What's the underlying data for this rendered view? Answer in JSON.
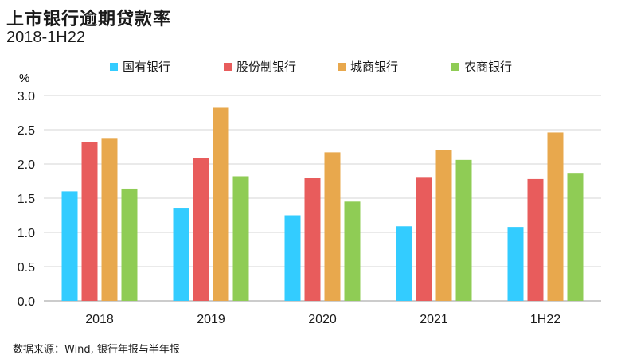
{
  "title": "上市银行逾期贷款率",
  "subtitle": "2018-1H22",
  "source": "数据来源：Wind, 银行年报与半年报",
  "colors": {
    "state_owned": "#33ccff",
    "joint_stock": "#e85c5c",
    "city_commercial": "#e8a84d",
    "rural_commercial": "#8fcc55"
  },
  "chart_data": {
    "type": "bar",
    "title": "上市银行逾期贷款率",
    "subtitle": "2018-1H22",
    "ylabel": "%",
    "xlabel": "",
    "ylim": [
      0,
      3.0
    ],
    "yticks": [
      "0.0",
      "0.5",
      "1.0",
      "1.5",
      "2.0",
      "2.5",
      "3.0"
    ],
    "grid": true,
    "legend_position": "top",
    "categories": [
      "2018",
      "2019",
      "2020",
      "2021",
      "1H22"
    ],
    "series": [
      {
        "name": "国有银行",
        "color": "#33ccff",
        "values": [
          1.6,
          1.36,
          1.25,
          1.09,
          1.08
        ]
      },
      {
        "name": "股份制银行",
        "color": "#e85c5c",
        "values": [
          2.32,
          2.09,
          1.8,
          1.81,
          1.78
        ]
      },
      {
        "name": "城商银行",
        "color": "#e8a84d",
        "values": [
          2.38,
          2.82,
          2.17,
          2.2,
          2.46
        ]
      },
      {
        "name": "农商银行",
        "color": "#8fcc55",
        "values": [
          1.64,
          1.82,
          1.45,
          2.06,
          1.87
        ]
      }
    ]
  }
}
